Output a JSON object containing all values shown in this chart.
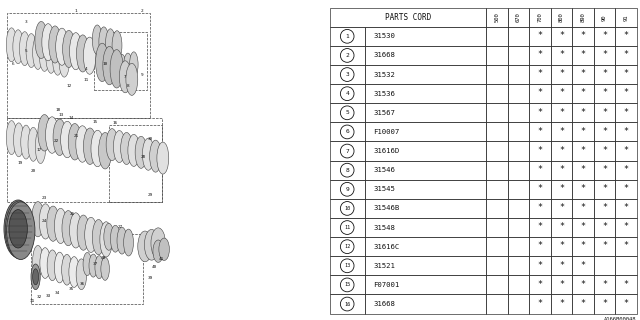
{
  "bg_color": "#ffffff",
  "table": {
    "rows": [
      {
        "label": "1",
        "code": "31530",
        "stars": [
          false,
          false,
          true,
          true,
          true,
          true,
          true
        ]
      },
      {
        "label": "2",
        "code": "31668",
        "stars": [
          false,
          false,
          true,
          true,
          true,
          true,
          true
        ]
      },
      {
        "label": "3",
        "code": "31532",
        "stars": [
          false,
          false,
          true,
          true,
          true,
          true,
          true
        ]
      },
      {
        "label": "4",
        "code": "31536",
        "stars": [
          false,
          false,
          true,
          true,
          true,
          true,
          true
        ]
      },
      {
        "label": "5",
        "code": "31567",
        "stars": [
          false,
          false,
          true,
          true,
          true,
          true,
          true
        ]
      },
      {
        "label": "6",
        "code": "F10007",
        "stars": [
          false,
          false,
          true,
          true,
          true,
          true,
          true
        ]
      },
      {
        "label": "7",
        "code": "31616D",
        "stars": [
          false,
          false,
          true,
          true,
          true,
          true,
          true
        ]
      },
      {
        "label": "8",
        "code": "31546",
        "stars": [
          false,
          false,
          true,
          true,
          true,
          true,
          true
        ]
      },
      {
        "label": "9",
        "code": "31545",
        "stars": [
          false,
          false,
          true,
          true,
          true,
          true,
          true
        ]
      },
      {
        "label": "10",
        "code": "31546B",
        "stars": [
          false,
          false,
          true,
          true,
          true,
          true,
          true
        ]
      },
      {
        "label": "11",
        "code": "31548",
        "stars": [
          false,
          false,
          true,
          true,
          true,
          true,
          true
        ]
      },
      {
        "label": "12",
        "code": "31616C",
        "stars": [
          false,
          false,
          true,
          true,
          true,
          true,
          true
        ]
      },
      {
        "label": "13",
        "code": "31521",
        "stars": [
          false,
          false,
          true,
          true,
          true,
          false,
          false
        ]
      },
      {
        "label": "15",
        "code": "F07001",
        "stars": [
          false,
          false,
          true,
          true,
          true,
          true,
          true
        ]
      },
      {
        "label": "16",
        "code": "31668",
        "stars": [
          false,
          false,
          true,
          true,
          true,
          true,
          true
        ]
      }
    ],
    "col_headers": [
      "500",
      "670",
      "700",
      "800",
      "890",
      "90",
      "91"
    ]
  },
  "watermark": "A166B00048",
  "line_color": "#333333",
  "text_color": "#111111"
}
